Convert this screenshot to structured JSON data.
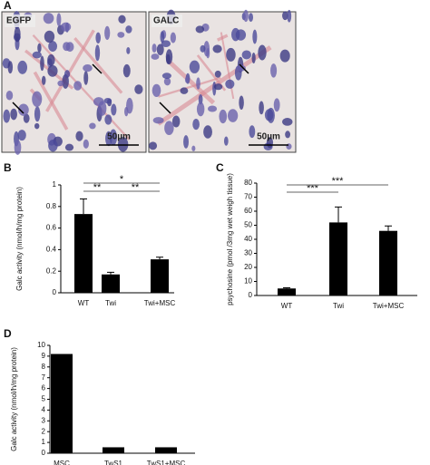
{
  "panel_a": {
    "label": "A",
    "images": [
      {
        "label": "EGFP",
        "scale": "50µm"
      },
      {
        "label": "GALC",
        "scale": "50µm"
      }
    ]
  },
  "chart_data": [
    {
      "type": "bar",
      "panel": "B",
      "ylabel": "Galc activity (nmol/h/mg protein)",
      "categories": [
        "WT",
        "Twi",
        "Twi+MSC"
      ],
      "values": [
        0.73,
        0.17,
        0.31
      ],
      "errors": [
        0.14,
        0.02,
        0.02
      ],
      "color": "#000000",
      "ylim": [
        0,
        1
      ],
      "yticks": [
        0,
        0.2,
        0.4,
        0.6,
        0.8,
        1
      ],
      "annotations": [
        "**",
        "*",
        "**"
      ]
    },
    {
      "type": "bar",
      "panel": "C",
      "ylabel": "psychosine (pmol /3mg wet weigh tissue)",
      "categories": [
        "WT",
        "Twi",
        "Twi+MSC"
      ],
      "values": [
        5,
        52,
        46
      ],
      "errors": [
        0.5,
        11,
        3.5
      ],
      "color": "#000000",
      "ylim": [
        0,
        80
      ],
      "yticks": [
        0,
        10,
        20,
        30,
        40,
        50,
        60,
        70,
        80
      ],
      "annotations": [
        "***",
        "***"
      ]
    },
    {
      "type": "bar",
      "panel": "D",
      "ylabel": "Galc activity (nmol/h/mg protein)",
      "categories": [
        "MSC",
        "TwS1",
        "TwS1+MSC"
      ],
      "values": [
        9.2,
        0.55,
        0.55
      ],
      "color": "#000000",
      "ylim": [
        0,
        10
      ],
      "yticks": [
        0,
        1,
        2,
        3,
        4,
        5,
        6,
        7,
        8,
        9,
        10
      ]
    }
  ]
}
